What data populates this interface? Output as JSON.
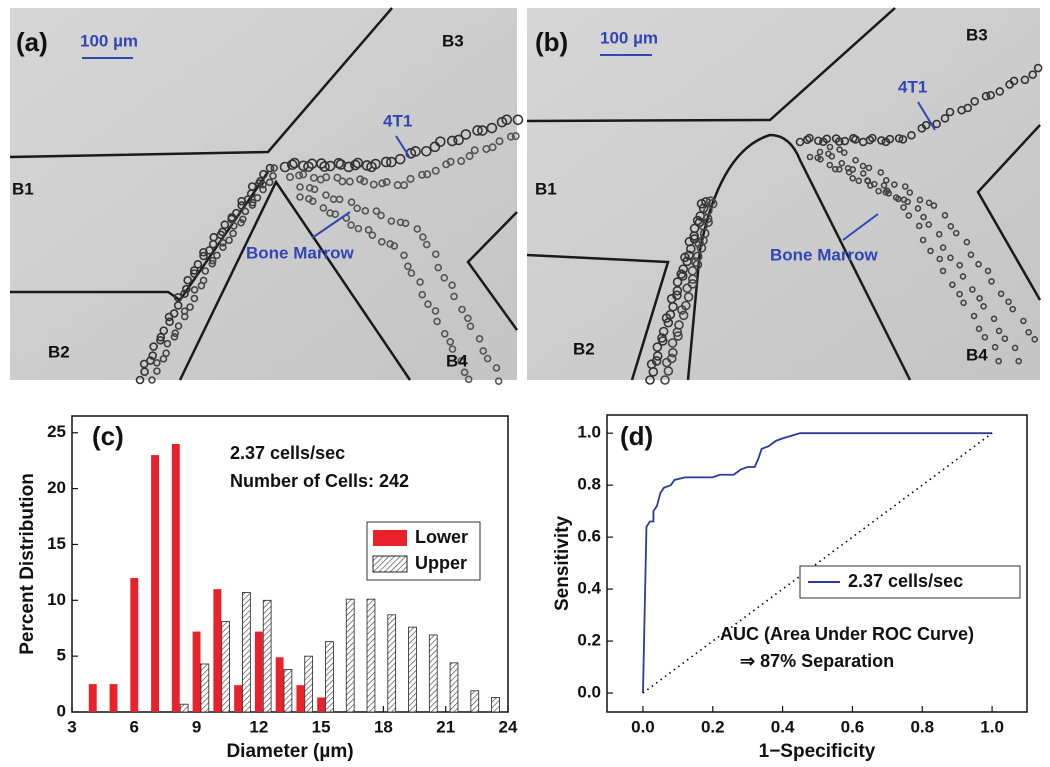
{
  "panels": [
    {
      "label": "(a)",
      "scale_bar": "100 µm",
      "labels": [
        "B1",
        "B2",
        "B3",
        "B4",
        "4T1",
        "Bone Marrow"
      ]
    },
    {
      "label": "(b)",
      "scale_bar": "100 µm",
      "labels": [
        "B1",
        "B2",
        "B3",
        "B4",
        "4T1",
        "Bone Marrow"
      ]
    }
  ],
  "chart_data": [
    {
      "type": "bar",
      "panel": "(c)",
      "annotations": [
        "2.37 cells/sec",
        "Number of Cells: 242"
      ],
      "x_label": "Diameter (µm)",
      "y_label": "Percent Distribution",
      "series": [
        {
          "name": "Lower",
          "color": "#e8212b",
          "x": [
            4,
            5,
            6,
            7,
            8,
            9,
            10,
            11,
            12,
            13,
            14,
            15
          ],
          "values": [
            2.5,
            2.5,
            12,
            23,
            24,
            7.2,
            11,
            2.4,
            7.2,
            4.9,
            2.4,
            1.3
          ]
        },
        {
          "name": "Upper",
          "color": "#444444",
          "hatch": true,
          "x": [
            8.4,
            9.4,
            10.4,
            11.4,
            12.4,
            13.4,
            14.4,
            15.4,
            16.4,
            17.4,
            18.4,
            19.4,
            20.4,
            21.4,
            22.4,
            23.4
          ],
          "values": [
            0.7,
            4.3,
            8.1,
            10.7,
            10,
            3.8,
            5,
            6.3,
            10.1,
            10.1,
            8.7,
            7.6,
            6.9,
            4.4,
            1.9,
            1.3
          ]
        }
      ],
      "xlim": [
        3,
        24
      ],
      "xticks": [
        3,
        6,
        9,
        12,
        15,
        18,
        21,
        24
      ],
      "ylim": [
        0,
        26.5
      ],
      "yticks": [
        0,
        5,
        10,
        15,
        20,
        25
      ],
      "legend": "right"
    },
    {
      "type": "line",
      "panel": "(d)",
      "annotations": [
        "AUC (Area Under ROC Curve)",
        "⇒ 87% Separation"
      ],
      "x_label": "1−Specificity",
      "y_label": "Sensitivity",
      "series": [
        {
          "name": "2.37 cells/sec",
          "color": "#2b3a9c",
          "x": [
            0,
            0.01,
            0.02,
            0.03,
            0.03,
            0.04,
            0.05,
            0.06,
            0.08,
            0.09,
            0.12,
            0.2,
            0.22,
            0.26,
            0.28,
            0.3,
            0.32,
            0.33,
            0.34,
            0.36,
            0.38,
            0.4,
            0.45,
            1.0
          ],
          "values": [
            0,
            0.64,
            0.66,
            0.66,
            0.7,
            0.72,
            0.77,
            0.79,
            0.8,
            0.82,
            0.83,
            0.83,
            0.84,
            0.84,
            0.86,
            0.87,
            0.87,
            0.9,
            0.94,
            0.95,
            0.97,
            0.98,
            1.0,
            1.0
          ]
        },
        {
          "color": "#000000",
          "dotted": true,
          "x": [
            0,
            1
          ],
          "values": [
            0,
            1
          ]
        }
      ],
      "xlim": [
        -0.103,
        1.1
      ],
      "xticks": [
        {
          "value": 0,
          "label": "0.0"
        },
        {
          "value": 0.2,
          "label": "0.2"
        },
        {
          "value": 0.4,
          "label": "0.4"
        },
        {
          "value": 0.6,
          "label": "0.6"
        },
        {
          "value": 0.8,
          "label": "0.8"
        },
        {
          "value": 1,
          "label": "1.0"
        }
      ],
      "ylim": [
        -0.073,
        1.07
      ],
      "yticks": [
        {
          "value": 0,
          "label": "0.0"
        },
        {
          "value": 0.2,
          "label": "0.2"
        },
        {
          "value": 0.4,
          "label": "0.4"
        },
        {
          "value": 0.6,
          "label": "0.6"
        },
        {
          "value": 0.8,
          "label": "0.8"
        },
        {
          "value": 1,
          "label": "1.0"
        }
      ],
      "legend": "center-right"
    }
  ]
}
